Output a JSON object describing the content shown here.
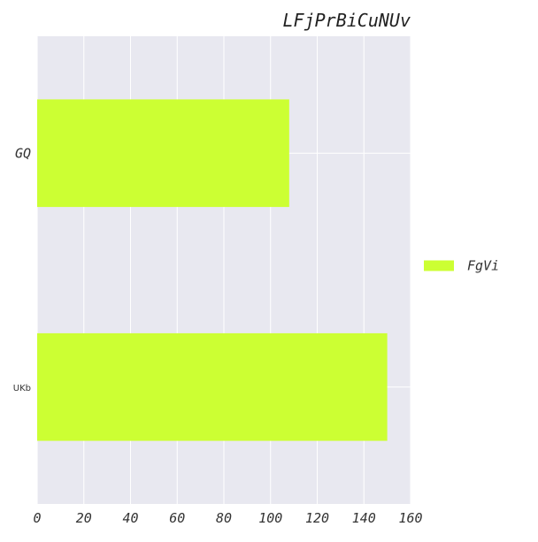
{
  "chart_data": {
    "type": "bar",
    "orientation": "horizontal",
    "title": "LFjPrBiCuNUv",
    "categories": [
      "GQ",
      "UKb"
    ],
    "series": [
      {
        "name": "FgVi",
        "values": [
          108,
          150
        ],
        "color": "#ccff33"
      }
    ],
    "xlim": [
      0,
      160
    ],
    "x_ticks": [
      "0",
      "20",
      "40",
      "60",
      "80",
      "100",
      "120",
      "140",
      "160"
    ],
    "xlabel": "",
    "ylabel": "",
    "grid": true,
    "legend_position": "right",
    "background_color": "#e8e8f0",
    "grid_color": "#ffffff"
  }
}
